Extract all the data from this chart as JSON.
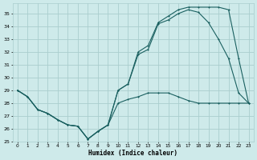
{
  "xlabel": "Humidex (Indice chaleur)",
  "bg_color": "#ceeaea",
  "grid_color": "#aacece",
  "line_color": "#1a6060",
  "xlim": [
    -0.5,
    23.5
  ],
  "ylim": [
    25,
    35.8
  ],
  "xticks": [
    0,
    1,
    2,
    3,
    4,
    5,
    6,
    7,
    8,
    9,
    10,
    11,
    12,
    13,
    14,
    15,
    16,
    17,
    18,
    19,
    20,
    21,
    22,
    23
  ],
  "yticks": [
    25,
    26,
    27,
    28,
    29,
    30,
    31,
    32,
    33,
    34,
    35
  ],
  "series1_x": [
    0,
    1,
    2,
    3,
    4,
    5,
    6,
    7,
    8,
    9,
    10,
    11,
    12,
    13,
    14,
    15,
    16,
    17,
    18,
    19,
    20,
    21,
    22,
    23
  ],
  "series1_y": [
    29.0,
    28.5,
    27.5,
    27.2,
    26.7,
    26.3,
    26.2,
    25.2,
    25.8,
    26.3,
    29.0,
    29.5,
    31.8,
    32.2,
    34.2,
    34.5,
    35.0,
    35.3,
    35.1,
    34.3,
    33.0,
    31.5,
    28.8,
    28.0
  ],
  "series2_x": [
    0,
    1,
    2,
    3,
    4,
    5,
    6,
    7,
    8,
    9,
    10,
    11,
    12,
    13,
    14,
    15,
    16,
    17,
    18,
    19,
    20,
    21,
    22,
    23
  ],
  "series2_y": [
    29.0,
    28.5,
    27.5,
    27.2,
    26.7,
    26.3,
    26.2,
    25.2,
    25.8,
    26.3,
    29.0,
    29.5,
    32.0,
    32.5,
    34.3,
    34.8,
    35.3,
    35.5,
    35.5,
    35.5,
    35.5,
    35.3,
    31.5,
    28.0
  ],
  "series3_x": [
    0,
    1,
    2,
    3,
    4,
    5,
    6,
    7,
    8,
    9,
    10,
    11,
    12,
    13,
    14,
    15,
    16,
    17,
    18,
    19,
    20,
    21,
    22,
    23
  ],
  "series3_y": [
    29.0,
    28.5,
    27.5,
    27.2,
    26.7,
    26.3,
    26.2,
    25.2,
    25.8,
    26.3,
    28.0,
    28.3,
    28.5,
    28.8,
    28.8,
    28.8,
    28.5,
    28.2,
    28.0,
    28.0,
    28.0,
    28.0,
    28.0,
    28.0
  ]
}
